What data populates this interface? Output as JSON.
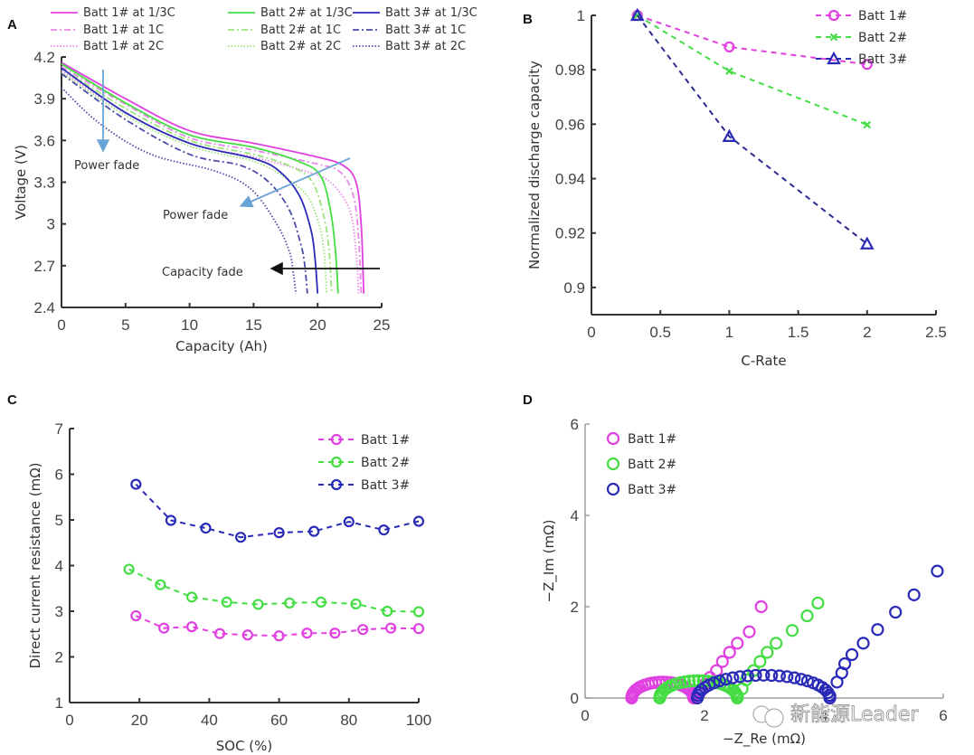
{
  "colors": {
    "batt1": "#e040e0",
    "batt2": "#44dd44",
    "batt3": "#2a2ab8",
    "batt1_light": "#e889e8",
    "batt2_light": "#9be37a",
    "batt3_light": "#4b4bab",
    "arrow_blue": "#6aa4d4",
    "arrow_black": "#111111"
  },
  "watermark": "新能源Leader",
  "chart_data": [
    {
      "id": "A",
      "panel_letter": "A",
      "type": "line",
      "title": "",
      "xlabel": "Capacity (Ah)",
      "ylabel": "Voltage (V)",
      "xlim": [
        0,
        25
      ],
      "ylim": [
        2.4,
        4.2
      ],
      "xticks": [
        "0",
        "5",
        "10",
        "15",
        "20",
        "25"
      ],
      "yticks": [
        "2.4",
        "2.7",
        "3",
        "3.3",
        "3.6",
        "3.9",
        "4.2"
      ],
      "legend": "top, 3 columns",
      "annotations": [
        {
          "text": "Power fade",
          "arrow": "down",
          "near": [
            3.3,
            3.5
          ]
        },
        {
          "text": "Power fade",
          "arrow": "down-left",
          "near": [
            13,
            3.15
          ]
        },
        {
          "text": "Capacity fade",
          "arrow": "left",
          "near": [
            17,
            2.69
          ]
        }
      ],
      "series": [
        {
          "name": "Batt 1# at 1/3C",
          "battery": 1,
          "style": "solid",
          "x": [
            0,
            5,
            10,
            15,
            20,
            22,
            23,
            23.4,
            23.6
          ],
          "y": [
            4.16,
            3.9,
            3.67,
            3.58,
            3.48,
            3.42,
            3.3,
            3.0,
            2.5
          ]
        },
        {
          "name": "Batt 1# at 1C",
          "battery": 1,
          "style": "dashdot",
          "x": [
            0,
            5,
            10,
            15,
            20,
            21.8,
            22.8,
            23.2,
            23.4
          ],
          "y": [
            4.13,
            3.86,
            3.62,
            3.53,
            3.43,
            3.37,
            3.2,
            2.9,
            2.5
          ]
        },
        {
          "name": "Batt 1# at 2C",
          "battery": 1,
          "style": "dotted",
          "x": [
            0,
            5,
            10,
            15,
            19,
            21,
            22.5,
            23,
            23.2
          ],
          "y": [
            4.1,
            3.8,
            3.58,
            3.48,
            3.38,
            3.3,
            3.1,
            2.8,
            2.5
          ]
        },
        {
          "name": "Batt 2# at 1/3C",
          "battery": 2,
          "style": "solid",
          "x": [
            0,
            5,
            10,
            15,
            18.5,
            20.2,
            21.0,
            21.4,
            21.6
          ],
          "y": [
            4.15,
            3.87,
            3.64,
            3.55,
            3.45,
            3.35,
            3.1,
            2.8,
            2.5
          ]
        },
        {
          "name": "Batt 2# at 1C",
          "battery": 2,
          "style": "dashdot",
          "x": [
            0,
            5,
            10,
            15,
            18,
            19.6,
            20.5,
            20.9,
            21.1
          ],
          "y": [
            4.12,
            3.83,
            3.6,
            3.5,
            3.41,
            3.3,
            3.05,
            2.8,
            2.5
          ]
        },
        {
          "name": "Batt 2# at 2C",
          "battery": 2,
          "style": "dotted",
          "x": [
            0,
            5,
            10,
            15,
            17.5,
            19.2,
            20.1,
            20.5,
            20.7
          ],
          "y": [
            4.09,
            3.78,
            3.56,
            3.45,
            3.33,
            3.2,
            3.0,
            2.8,
            2.5
          ]
        },
        {
          "name": "Batt 3# at 1/3C",
          "battery": 3,
          "style": "solid",
          "x": [
            0,
            5,
            10,
            15,
            17.0,
            18.6,
            19.5,
            19.8,
            20.0
          ],
          "y": [
            4.12,
            3.8,
            3.58,
            3.47,
            3.38,
            3.2,
            2.95,
            2.75,
            2.5
          ]
        },
        {
          "name": "Batt 3# at 1C",
          "battery": 3,
          "style": "dashdot",
          "x": [
            0,
            5,
            10,
            14,
            16.2,
            17.8,
            18.7,
            19.0,
            19.2
          ],
          "y": [
            4.08,
            3.75,
            3.5,
            3.42,
            3.3,
            3.1,
            2.85,
            2.7,
            2.5
          ]
        },
        {
          "name": "Batt 3# at 2C",
          "battery": 3,
          "style": "dotted",
          "x": [
            0,
            3,
            7,
            12,
            14.8,
            16.8,
            17.8,
            18.1,
            18.3
          ],
          "y": [
            3.98,
            3.72,
            3.5,
            3.38,
            3.25,
            3.0,
            2.8,
            2.65,
            2.5
          ]
        }
      ]
    },
    {
      "id": "B",
      "panel_letter": "B",
      "type": "line",
      "title": "",
      "xlabel": "C-Rate",
      "ylabel": "Normalized discharge capacity",
      "xlim": [
        0,
        2.5
      ],
      "ylim": [
        0.89,
        1.0
      ],
      "xticks": [
        "0",
        "0.5",
        "1",
        "1.5",
        "2",
        "2.5"
      ],
      "yticks": [
        "0.9",
        "0.92",
        "0.94",
        "0.96",
        "0.98",
        "1"
      ],
      "legend": "top-right",
      "series": [
        {
          "name": "Batt 1#",
          "battery": 1,
          "marker": "circle",
          "x": [
            0.333,
            1,
            2
          ],
          "y": [
            1.0,
            0.9884,
            0.982
          ]
        },
        {
          "name": "Batt 2#",
          "battery": 2,
          "marker": "x",
          "x": [
            0.333,
            1,
            2
          ],
          "y": [
            1.0,
            0.9795,
            0.9598
          ]
        },
        {
          "name": "Batt 3#",
          "battery": 3,
          "marker": "triangle",
          "x": [
            0.333,
            1,
            2
          ],
          "y": [
            1.0,
            0.9555,
            0.916
          ]
        }
      ]
    },
    {
      "id": "C",
      "panel_letter": "C",
      "type": "line",
      "title": "",
      "xlabel": "SOC (%)",
      "ylabel": "Direct current resistance (mΩ)",
      "xlim": [
        0,
        100
      ],
      "ylim": [
        1,
        7
      ],
      "xticks": [
        "0",
        "20",
        "40",
        "60",
        "80",
        "100"
      ],
      "yticks": [
        "1",
        "2",
        "3",
        "4",
        "5",
        "6",
        "7"
      ],
      "legend": "top-right",
      "series": [
        {
          "name": "Batt 1#",
          "battery": 1,
          "marker": "circle",
          "x": [
            19,
            27,
            35,
            43,
            51,
            60,
            68,
            76,
            84,
            92,
            100
          ],
          "y": [
            2.9,
            2.63,
            2.66,
            2.51,
            2.48,
            2.46,
            2.52,
            2.52,
            2.6,
            2.63,
            2.62
          ]
        },
        {
          "name": "Batt 2#",
          "battery": 2,
          "marker": "circle",
          "x": [
            17,
            26,
            35,
            45,
            54,
            63,
            72,
            82,
            91,
            100
          ],
          "y": [
            3.92,
            3.58,
            3.31,
            3.2,
            3.15,
            3.18,
            3.2,
            3.16,
            3.0,
            2.99
          ]
        },
        {
          "name": "Batt 3#",
          "battery": 3,
          "marker": "circle",
          "x": [
            19,
            29,
            39,
            49,
            60,
            70,
            80,
            90,
            100
          ],
          "y": [
            5.78,
            4.99,
            4.82,
            4.62,
            4.72,
            4.75,
            4.96,
            4.78,
            4.97
          ]
        }
      ]
    },
    {
      "id": "D",
      "panel_letter": "D",
      "type": "scatter",
      "title": "",
      "xlabel": "−Z_Re (mΩ)",
      "ylabel": "−Z_Im (mΩ)",
      "xlim": [
        0,
        6
      ],
      "ylim": [
        0,
        6
      ],
      "xticks": [
        "0",
        "2",
        "4",
        "6"
      ],
      "yticks": [
        "0",
        "2",
        "4",
        "6"
      ],
      "legend": "top-left",
      "series": [
        {
          "name": "Batt 1#",
          "battery": 1,
          "marker": "open-circle",
          "arc": {
            "x_start": 0.78,
            "x_end": 1.82,
            "peak": 0.35
          },
          "tail_x": [
            1.82,
            1.92,
            2.0,
            2.09,
            2.2,
            2.3,
            2.42,
            2.55,
            2.75,
            2.95
          ],
          "tail_y": [
            0.05,
            0.15,
            0.3,
            0.45,
            0.6,
            0.8,
            1.0,
            1.2,
            1.45,
            2.0
          ]
        },
        {
          "name": "Batt 2#",
          "battery": 2,
          "marker": "open-circle",
          "arc": {
            "x_start": 1.25,
            "x_end": 2.55,
            "peak": 0.38
          },
          "tail_x": [
            2.55,
            2.63,
            2.7,
            2.82,
            2.93,
            3.05,
            3.2,
            3.47,
            3.72,
            3.9
          ],
          "tail_y": [
            0.05,
            0.2,
            0.4,
            0.6,
            0.8,
            1.0,
            1.2,
            1.48,
            1.8,
            2.08
          ]
        },
        {
          "name": "Batt 3#",
          "battery": 3,
          "marker": "open-circle",
          "arc": {
            "x_start": 1.88,
            "x_end": 4.1,
            "peak": 0.5
          },
          "tail_x": [
            4.1,
            4.22,
            4.3,
            4.35,
            4.47,
            4.66,
            4.9,
            5.2,
            5.51,
            5.9
          ],
          "tail_y": [
            0.05,
            0.35,
            0.55,
            0.75,
            0.95,
            1.2,
            1.5,
            1.88,
            2.26,
            2.78
          ]
        }
      ]
    }
  ]
}
